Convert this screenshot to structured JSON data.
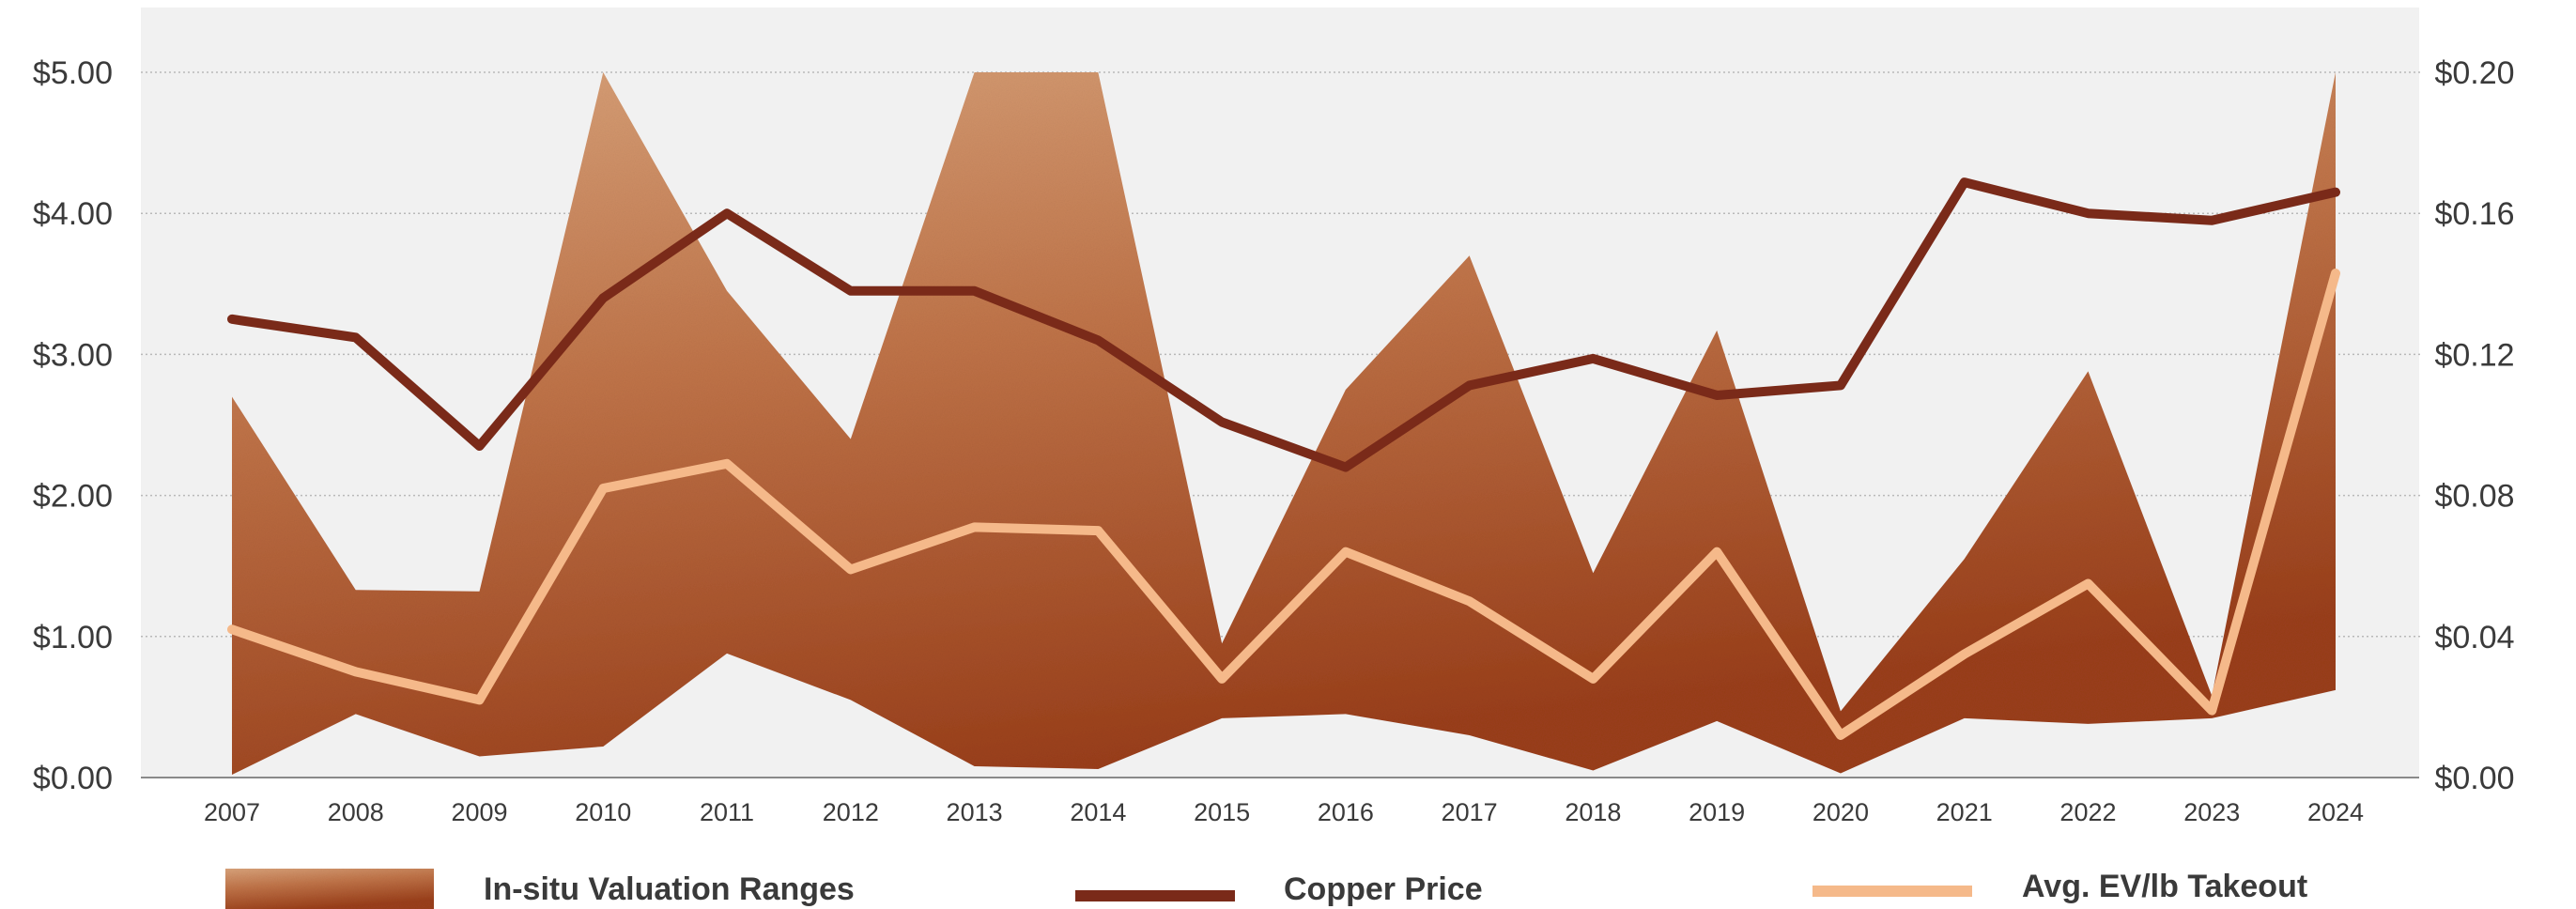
{
  "chart_data": {
    "type": "area",
    "categories": [
      "2007",
      "2008",
      "2009",
      "2010",
      "2011",
      "2012",
      "2013",
      "2014",
      "2015",
      "2016",
      "2017",
      "2018",
      "2019",
      "2020",
      "2021",
      "2022",
      "2023",
      "2024"
    ],
    "y_left": {
      "ylim": [
        0,
        5.0
      ],
      "ticks": [
        "$0.00",
        "$1.00",
        "$2.00",
        "$3.00",
        "$4.00",
        "$5.00"
      ]
    },
    "y_right": {
      "ylim": [
        0,
        0.2
      ],
      "ticks": [
        "$0.00",
        "$0.04",
        "$0.08",
        "$0.12",
        "$0.16",
        "$0.20"
      ]
    },
    "grid": true,
    "series": [
      {
        "name": "In-situ  Valuation Ranges",
        "kind": "range-area",
        "axis": "left",
        "high": [
          2.7,
          1.33,
          1.32,
          5.0,
          3.45,
          2.4,
          5.0,
          5.0,
          0.95,
          2.75,
          3.7,
          1.45,
          3.17,
          0.47,
          1.55,
          2.88,
          0.58,
          5.0
        ],
        "low": [
          0.02,
          0.45,
          0.15,
          0.22,
          0.88,
          0.55,
          0.08,
          0.06,
          0.42,
          0.45,
          0.3,
          0.05,
          0.4,
          0.03,
          0.42,
          0.38,
          0.42,
          0.62
        ],
        "color": "#b8643a"
      },
      {
        "name": "Copper Price",
        "kind": "line",
        "axis": "left",
        "values": [
          3.25,
          3.12,
          2.35,
          3.4,
          4.0,
          3.45,
          3.45,
          3.1,
          2.52,
          2.2,
          2.78,
          2.97,
          2.71,
          2.78,
          4.22,
          4.0,
          3.95,
          4.15
        ],
        "color": "#7a2a19"
      },
      {
        "name": "Avg. EV/lb Takeout",
        "kind": "line",
        "axis": "right",
        "values": [
          0.042,
          0.03,
          0.022,
          0.082,
          0.089,
          0.059,
          0.071,
          0.07,
          0.028,
          0.064,
          0.05,
          0.028,
          0.064,
          0.012,
          0.035,
          0.055,
          0.019,
          0.143
        ],
        "color": "#f5b98a"
      }
    ],
    "legend": {
      "position": "bottom",
      "items": [
        "In-situ  Valuation Ranges",
        "Copper Price",
        "Avg. EV/lb Takeout"
      ]
    }
  }
}
